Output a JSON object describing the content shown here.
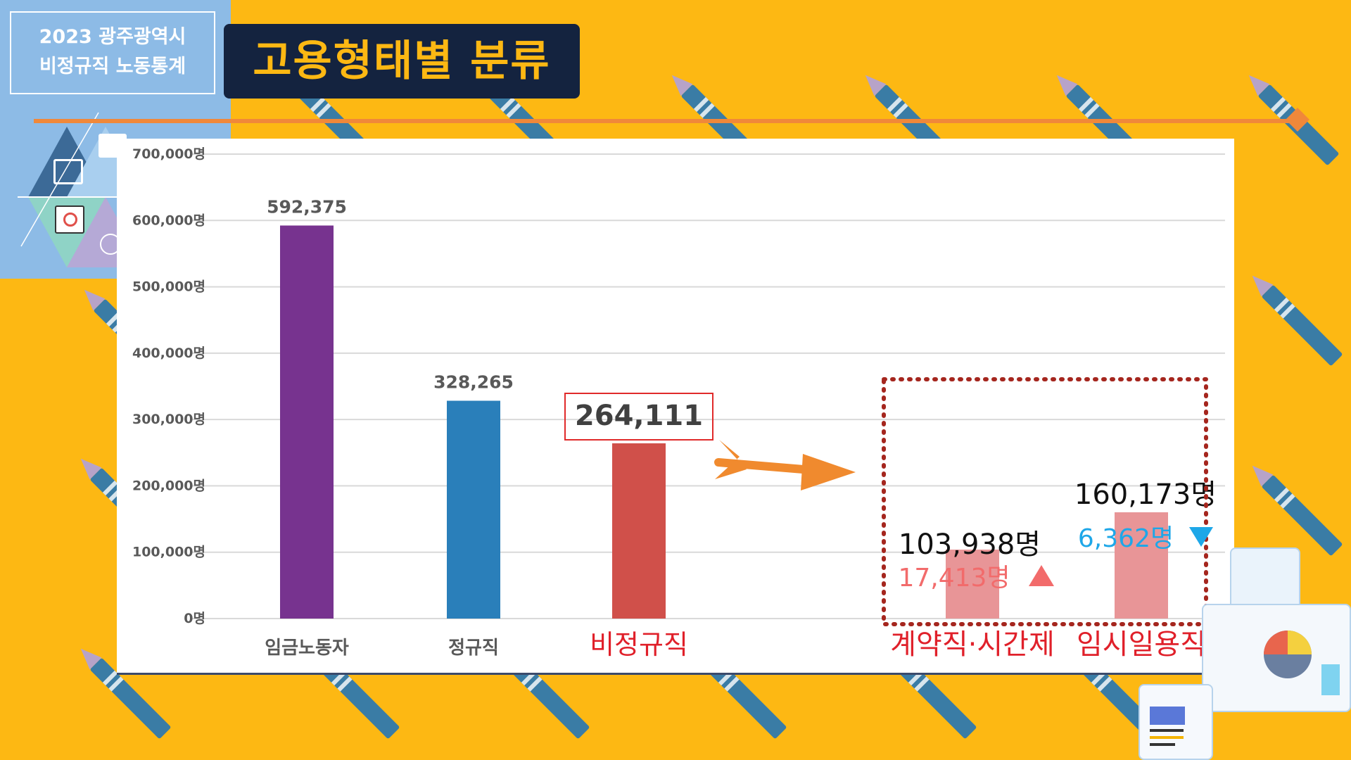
{
  "header": {
    "badge_line1": "2023 광주광역시",
    "badge_line2": "비정규직 노동통계",
    "title": "고용형태별 분류"
  },
  "chart_data": {
    "type": "bar",
    "categories": [
      "임금노동자",
      "정규직",
      "비정규직",
      "계약직·시간제",
      "임시일용직"
    ],
    "values": [
      592375,
      328265,
      264111,
      103938,
      160173
    ],
    "value_labels": [
      "592,375",
      "328,265",
      "264,111",
      "103,938명",
      "160,173명"
    ],
    "ylim": [
      0,
      700000
    ],
    "yticks": [
      0,
      100000,
      200000,
      300000,
      400000,
      500000,
      600000,
      700000
    ],
    "ytick_labels": [
      "0명",
      "100,000명",
      "200,000명",
      "300,000명",
      "400,000명",
      "500,000명",
      "600,000명",
      "700,000명"
    ],
    "grid": true,
    "colors": [
      "#77338F",
      "#2A7FBA",
      "#D0504A",
      "#E89597",
      "#E89597"
    ],
    "highlight_label": "264,111",
    "changes": [
      {
        "category": "계약직·시간제",
        "text": "17,413명",
        "direction": "up",
        "color": "#F26B6B"
      },
      {
        "category": "임시일용직",
        "text": "6,362명",
        "direction": "down",
        "color": "#1EA7E8"
      }
    ]
  },
  "colors": {
    "background": "#FDB813",
    "headline_bg": "#14233F",
    "headline_text": "#FDB813",
    "accent_line": "#F0883A"
  },
  "icons": [
    "presentation-icon",
    "analytics-icon",
    "cloud-icon",
    "pie-chart-icon",
    "window-icon"
  ]
}
